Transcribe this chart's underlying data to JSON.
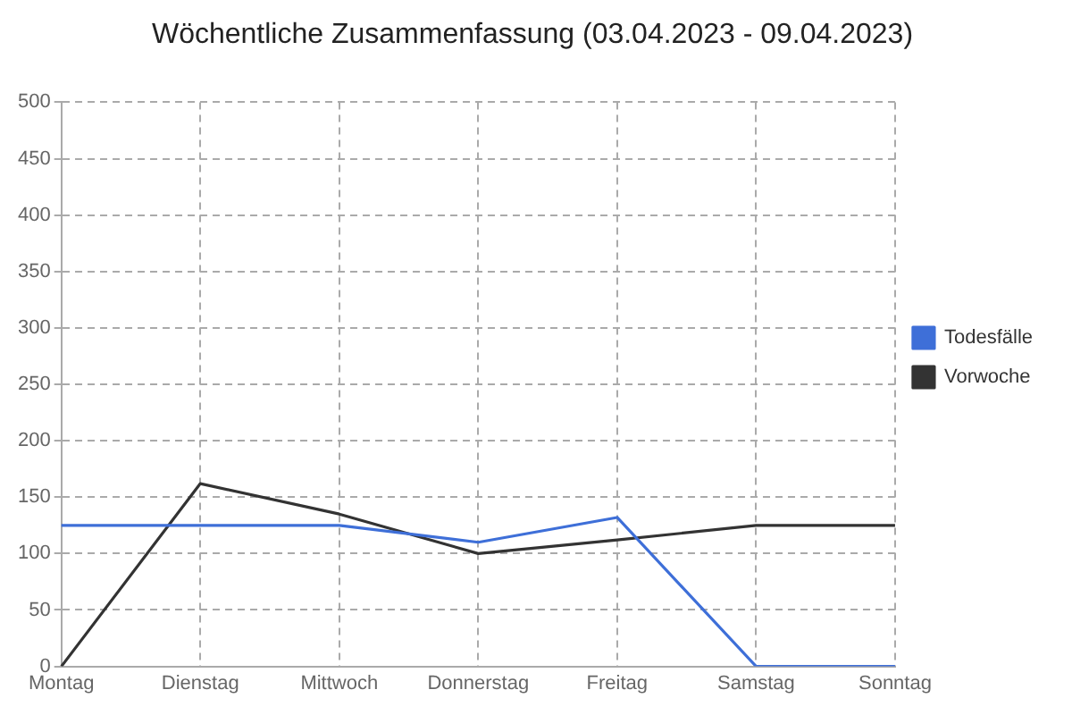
{
  "chart_data": {
    "type": "line",
    "title": "Wöchentliche Zusammenfassung (03.04.2023 - 09.04.2023)",
    "categories": [
      "Montag",
      "Dienstag",
      "Mittwoch",
      "Donnerstag",
      "Freitag",
      "Samstag",
      "Sonntag"
    ],
    "series": [
      {
        "name": "Todesfälle",
        "color": "#3e6fd8",
        "values": [
          125,
          125,
          125,
          110,
          132,
          0,
          0
        ]
      },
      {
        "name": "Vorwoche",
        "color": "#333333",
        "values": [
          0,
          162,
          135,
          100,
          112,
          125,
          125
        ]
      }
    ],
    "ylim": [
      0,
      500
    ],
    "yticks": [
      0,
      50,
      100,
      150,
      200,
      250,
      300,
      350,
      400,
      450,
      500
    ],
    "grid": true,
    "legend": "right",
    "marker": "none",
    "line_style": "solid"
  }
}
